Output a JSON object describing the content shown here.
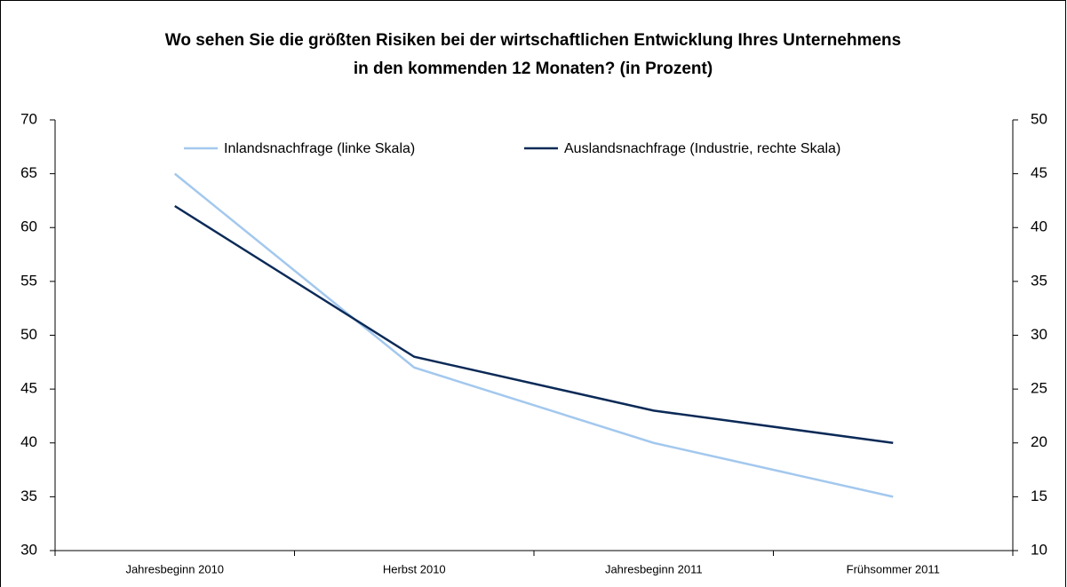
{
  "chart_data": {
    "type": "line",
    "title": [
      "Wo sehen Sie die größten Risiken bei der wirtschaftlichen Entwicklung Ihres Unternehmens",
      "in den kommenden 12 Monaten? (in Prozent)"
    ],
    "categories": [
      "Jahresbeginn 2010",
      "Herbst 2010",
      "Jahresbeginn 2011",
      "Frühsommer 2011"
    ],
    "series": [
      {
        "name": "Inlandsnachfrage (linke Skala)",
        "color": "#a3c8ee",
        "values": [
          65,
          47,
          40,
          35
        ]
      },
      {
        "name": "Auslandsnachfrage (Industrie, rechte Skala)",
        "color": "#0b2a57",
        "values": [
          42,
          28,
          23,
          20
        ],
        "axis": "y2"
      }
    ],
    "ylim": [
      30,
      70
    ],
    "yticks": [
      30,
      35,
      40,
      45,
      50,
      55,
      60,
      65,
      70
    ],
    "y2lim": [
      10,
      50
    ],
    "y2ticks": [
      10,
      15,
      20,
      25,
      30,
      35,
      40,
      45,
      50
    ],
    "legend": "top",
    "grid": false
  }
}
